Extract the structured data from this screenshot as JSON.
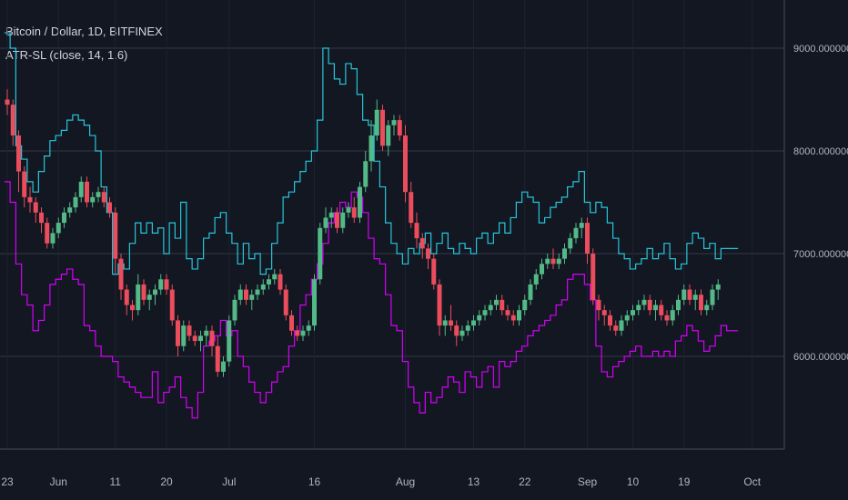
{
  "header": {
    "symbol_title": "Bitcoin / Dollar, 1D, BITFINEX",
    "indicator_label": "ATR-SL (close, 14, 1.6)"
  },
  "colors": {
    "background": "#131722",
    "grid": "#363a45",
    "axis_text": "#b2b5be",
    "up": "#53b987",
    "down": "#eb4d5c",
    "upper_line": "#26c6da",
    "lower_line": "#d500f9"
  },
  "chart_data": {
    "type": "line",
    "title": "Bitcoin / Dollar, 1D, BITFINEX",
    "ylim": [
      5000,
      9400
    ],
    "y_ticks": [
      6000,
      7000,
      8000,
      9000
    ],
    "y_tick_labels": [
      "6000.00000000",
      "7000.00000000",
      "8000.00000000",
      "9000.00000000"
    ],
    "x_tick_labels": [
      "23",
      "Jun",
      "11",
      "20",
      "Jul",
      "16",
      "Aug",
      "13",
      "22",
      "Sep",
      "10",
      "19",
      "Oct"
    ],
    "x_tick_days": [
      0,
      9,
      19,
      28,
      39,
      54,
      70,
      82,
      91,
      102,
      110,
      119,
      131
    ],
    "grid": true,
    "series": [
      {
        "name": "ATR-SL upper",
        "x": [
          0,
          1,
          2,
          3,
          4,
          5,
          6,
          7,
          8,
          9,
          10,
          11,
          12,
          13,
          14,
          15,
          16,
          17,
          18,
          19,
          20,
          21,
          22,
          23,
          24,
          25,
          26,
          27,
          28,
          29,
          30,
          31,
          32,
          33,
          34,
          35,
          36,
          37,
          38,
          39,
          40,
          41,
          42,
          43,
          44,
          45,
          46,
          47,
          48,
          49,
          50,
          51,
          52,
          53,
          54,
          55,
          56,
          57,
          58,
          59,
          60,
          61,
          62,
          63,
          64,
          65,
          66,
          67,
          68,
          69,
          70,
          71,
          72,
          73,
          74,
          75,
          76,
          77,
          78,
          79,
          80,
          81,
          82,
          83,
          84,
          85,
          86,
          87,
          88,
          89,
          90,
          91,
          92,
          93,
          94,
          95,
          96,
          97,
          98,
          99,
          100,
          101,
          102,
          103,
          104,
          105,
          106,
          107,
          108,
          109,
          110,
          111,
          112,
          113,
          114,
          115,
          116,
          117,
          118,
          119,
          120,
          121,
          122,
          123,
          124,
          125,
          126,
          127,
          128
        ],
        "values": [
          9150,
          9000,
          8050,
          7920,
          7700,
          7600,
          7800,
          7950,
          8100,
          8150,
          8200,
          8300,
          8350,
          8300,
          8250,
          8150,
          8000,
          7650,
          7400,
          6800,
          6900,
          6850,
          7100,
          7300,
          7200,
          7300,
          7200,
          7250,
          7000,
          7300,
          7150,
          7500,
          6950,
          6850,
          6950,
          7150,
          7200,
          7350,
          7400,
          7200,
          7100,
          6900,
          7100,
          6950,
          7000,
          6800,
          6850,
          7100,
          7300,
          7550,
          7600,
          7700,
          7800,
          7900,
          8000,
          8300,
          9000,
          8850,
          8700,
          8650,
          8850,
          8800,
          8550,
          8300,
          8250,
          7900,
          7650,
          7300,
          7100,
          7000,
          6900,
          7050,
          7000,
          7100,
          7200,
          7000,
          7100,
          7200,
          7050,
          7000,
          7100,
          7050,
          7000,
          7150,
          7200,
          7100,
          7200,
          7300,
          7200,
          7350,
          7500,
          7600,
          7550,
          7500,
          7300,
          7350,
          7450,
          7500,
          7550,
          7650,
          7700,
          7800,
          7500,
          7400,
          7500,
          7450,
          7300,
          7150,
          7000,
          6950,
          6850,
          6900,
          6950,
          7050,
          6950,
          7000,
          7100,
          6950,
          6850,
          6900,
          7100,
          7200,
          7150,
          7050,
          7100,
          6950,
          7050,
          7050,
          7050
        ]
      },
      {
        "name": "ATR-SL lower",
        "x": [
          0,
          1,
          2,
          3,
          4,
          5,
          6,
          7,
          8,
          9,
          10,
          11,
          12,
          13,
          14,
          15,
          16,
          17,
          18,
          19,
          20,
          21,
          22,
          23,
          24,
          25,
          26,
          27,
          28,
          29,
          30,
          31,
          32,
          33,
          34,
          35,
          36,
          37,
          38,
          39,
          40,
          41,
          42,
          43,
          44,
          45,
          46,
          47,
          48,
          49,
          50,
          51,
          52,
          53,
          54,
          55,
          56,
          57,
          58,
          59,
          60,
          61,
          62,
          63,
          64,
          65,
          66,
          67,
          68,
          69,
          70,
          71,
          72,
          73,
          74,
          75,
          76,
          77,
          78,
          79,
          80,
          81,
          82,
          83,
          84,
          85,
          86,
          87,
          88,
          89,
          90,
          91,
          92,
          93,
          94,
          95,
          96,
          97,
          98,
          99,
          100,
          101,
          102,
          103,
          104,
          105,
          106,
          107,
          108,
          109,
          110,
          111,
          112,
          113,
          114,
          115,
          116,
          117,
          118,
          119,
          120,
          121,
          122,
          123,
          124,
          125,
          126,
          127,
          128
        ],
        "values": [
          7700,
          7500,
          6900,
          6600,
          6500,
          6250,
          6350,
          6500,
          6700,
          6750,
          6800,
          6850,
          6750,
          6700,
          6300,
          6250,
          6100,
          6000,
          6000,
          5950,
          5800,
          5750,
          5700,
          5650,
          5600,
          5600,
          5850,
          5550,
          5650,
          5700,
          5800,
          5600,
          5500,
          5400,
          5650,
          6100,
          6150,
          6200,
          6350,
          6200,
          6250,
          6000,
          5900,
          5750,
          5650,
          5550,
          5650,
          5750,
          5850,
          5900,
          6100,
          6250,
          6500,
          6600,
          6750,
          6900,
          7100,
          7300,
          7400,
          7500,
          7450,
          7600,
          7550,
          7400,
          7150,
          6950,
          6900,
          6600,
          6300,
          6250,
          5950,
          5700,
          5550,
          5450,
          5650,
          5550,
          5600,
          5700,
          5800,
          5750,
          5650,
          5850,
          5800,
          5700,
          5850,
          5900,
          5700,
          5950,
          5900,
          5950,
          6050,
          6100,
          6200,
          6250,
          6300,
          6350,
          6400,
          6500,
          6550,
          6750,
          6800,
          6800,
          6700,
          6550,
          6100,
          5850,
          5800,
          5900,
          5950,
          6000,
          6050,
          6100,
          6000,
          6000,
          6050,
          6000,
          6050,
          6000,
          6150,
          6200,
          6300,
          6250,
          6150,
          6050,
          6100,
          6200,
          6300,
          6250,
          6250
        ]
      }
    ],
    "candles": [
      [
        8500,
        8600,
        8350,
        8450
      ],
      [
        8450,
        8500,
        8050,
        8150
      ],
      [
        8150,
        8200,
        7600,
        7800
      ],
      [
        7800,
        7850,
        7450,
        7550
      ],
      [
        7550,
        7650,
        7400,
        7500
      ],
      [
        7500,
        7550,
        7300,
        7400
      ],
      [
        7400,
        7450,
        7200,
        7300
      ],
      [
        7300,
        7350,
        7050,
        7100
      ],
      [
        7100,
        7250,
        7050,
        7200
      ],
      [
        7200,
        7350,
        7150,
        7300
      ],
      [
        7300,
        7450,
        7250,
        7400
      ],
      [
        7400,
        7500,
        7350,
        7450
      ],
      [
        7450,
        7600,
        7400,
        7550
      ],
      [
        7550,
        7750,
        7500,
        7700
      ],
      [
        7700,
        7750,
        7450,
        7500
      ],
      [
        7500,
        7600,
        7450,
        7550
      ],
      [
        7550,
        7650,
        7500,
        7600
      ],
      [
        7600,
        7650,
        7450,
        7500
      ],
      [
        7500,
        7550,
        7350,
        7400
      ],
      [
        7400,
        7450,
        6800,
        6950
      ],
      [
        6950,
        7000,
        6550,
        6650
      ],
      [
        6650,
        6700,
        6400,
        6500
      ],
      [
        6500,
        6550,
        6350,
        6450
      ],
      [
        6450,
        6800,
        6400,
        6700
      ],
      [
        6700,
        6750,
        6500,
        6550
      ],
      [
        6550,
        6650,
        6450,
        6600
      ],
      [
        6600,
        6700,
        6500,
        6650
      ],
      [
        6650,
        6800,
        6600,
        6750
      ],
      [
        6750,
        6800,
        6600,
        6650
      ],
      [
        6650,
        6700,
        6300,
        6350
      ],
      [
        6350,
        6400,
        6000,
        6100
      ],
      [
        6100,
        6350,
        6050,
        6300
      ],
      [
        6300,
        6350,
        6150,
        6200
      ],
      [
        6200,
        6250,
        6100,
        6150
      ],
      [
        6150,
        6250,
        6050,
        6200
      ],
      [
        6200,
        6300,
        6100,
        6250
      ],
      [
        6250,
        6300,
        6000,
        6100
      ],
      [
        6100,
        6200,
        5800,
        5850
      ],
      [
        5850,
        6000,
        5800,
        5950
      ],
      [
        5950,
        6400,
        5900,
        6350
      ],
      [
        6350,
        6600,
        6300,
        6550
      ],
      [
        6550,
        6700,
        6500,
        6650
      ],
      [
        6650,
        6700,
        6500,
        6550
      ],
      [
        6550,
        6650,
        6450,
        6600
      ],
      [
        6600,
        6700,
        6550,
        6650
      ],
      [
        6650,
        6750,
        6600,
        6700
      ],
      [
        6700,
        6800,
        6650,
        6750
      ],
      [
        6750,
        6850,
        6700,
        6800
      ],
      [
        6800,
        6850,
        6600,
        6650
      ],
      [
        6650,
        6700,
        6350,
        6400
      ],
      [
        6400,
        6450,
        6200,
        6250
      ],
      [
        6250,
        6300,
        6150,
        6200
      ],
      [
        6200,
        6300,
        6150,
        6250
      ],
      [
        6250,
        6350,
        6200,
        6300
      ],
      [
        6300,
        6800,
        6250,
        6750
      ],
      [
        6750,
        7300,
        6700,
        7250
      ],
      [
        7250,
        7450,
        7200,
        7350
      ],
      [
        7350,
        7450,
        7250,
        7400
      ],
      [
        7400,
        7450,
        7200,
        7250
      ],
      [
        7250,
        7450,
        7200,
        7400
      ],
      [
        7400,
        7500,
        7350,
        7450
      ],
      [
        7450,
        7550,
        7300,
        7350
      ],
      [
        7350,
        7700,
        7300,
        7650
      ],
      [
        7650,
        8000,
        7600,
        7900
      ],
      [
        7900,
        8300,
        7800,
        8150
      ],
      [
        8150,
        8500,
        8100,
        8400
      ],
      [
        8400,
        8450,
        8000,
        8050
      ],
      [
        8050,
        8300,
        7950,
        8250
      ],
      [
        8250,
        8350,
        8150,
        8300
      ],
      [
        8300,
        8350,
        8100,
        8150
      ],
      [
        8150,
        8250,
        7500,
        7600
      ],
      [
        7600,
        7700,
        7250,
        7300
      ],
      [
        7300,
        7400,
        7050,
        7150
      ],
      [
        7150,
        7200,
        6950,
        7050
      ],
      [
        7050,
        7100,
        6850,
        6950
      ],
      [
        6950,
        7000,
        6650,
        6700
      ],
      [
        6700,
        6750,
        6200,
        6300
      ],
      [
        6300,
        6400,
        6200,
        6350
      ],
      [
        6350,
        6500,
        6250,
        6300
      ],
      [
        6300,
        6350,
        6100,
        6200
      ],
      [
        6200,
        6300,
        6150,
        6250
      ],
      [
        6250,
        6350,
        6200,
        6300
      ],
      [
        6300,
        6400,
        6250,
        6350
      ],
      [
        6350,
        6450,
        6300,
        6400
      ],
      [
        6400,
        6500,
        6350,
        6450
      ],
      [
        6450,
        6550,
        6400,
        6500
      ],
      [
        6500,
        6600,
        6450,
        6550
      ],
      [
        6550,
        6600,
        6400,
        6450
      ],
      [
        6450,
        6500,
        6350,
        6400
      ],
      [
        6400,
        6450,
        6300,
        6350
      ],
      [
        6350,
        6500,
        6300,
        6450
      ],
      [
        6450,
        6600,
        6400,
        6550
      ],
      [
        6550,
        6750,
        6500,
        6700
      ],
      [
        6700,
        6850,
        6650,
        6800
      ],
      [
        6800,
        6950,
        6750,
        6900
      ],
      [
        6900,
        7000,
        6850,
        6950
      ],
      [
        6950,
        7050,
        6850,
        6900
      ],
      [
        6900,
        7000,
        6850,
        6950
      ],
      [
        6950,
        7100,
        6900,
        7050
      ],
      [
        7050,
        7200,
        7000,
        7150
      ],
      [
        7150,
        7300,
        7100,
        7250
      ],
      [
        7250,
        7350,
        7150,
        7300
      ],
      [
        7300,
        7350,
        6900,
        7000
      ],
      [
        7000,
        7050,
        6500,
        6550
      ],
      [
        6550,
        6600,
        6350,
        6450
      ],
      [
        6450,
        6500,
        6300,
        6400
      ],
      [
        6400,
        6450,
        6250,
        6300
      ],
      [
        6300,
        6350,
        6200,
        6250
      ],
      [
        6250,
        6400,
        6200,
        6350
      ],
      [
        6350,
        6450,
        6300,
        6400
      ],
      [
        6400,
        6500,
        6350,
        6450
      ],
      [
        6450,
        6550,
        6400,
        6500
      ],
      [
        6500,
        6600,
        6450,
        6550
      ],
      [
        6550,
        6600,
        6400,
        6450
      ],
      [
        6450,
        6550,
        6350,
        6500
      ],
      [
        6500,
        6550,
        6350,
        6400
      ],
      [
        6400,
        6450,
        6300,
        6350
      ],
      [
        6350,
        6500,
        6300,
        6450
      ],
      [
        6450,
        6600,
        6400,
        6550
      ],
      [
        6550,
        6700,
        6500,
        6650
      ],
      [
        6650,
        6700,
        6500,
        6550
      ],
      [
        6550,
        6650,
        6450,
        6600
      ],
      [
        6600,
        6650,
        6400,
        6450
      ],
      [
        6450,
        6550,
        6400,
        6500
      ],
      [
        6500,
        6700,
        6450,
        6650
      ],
      [
        6650,
        6750,
        6550,
        6700
      ]
    ]
  }
}
